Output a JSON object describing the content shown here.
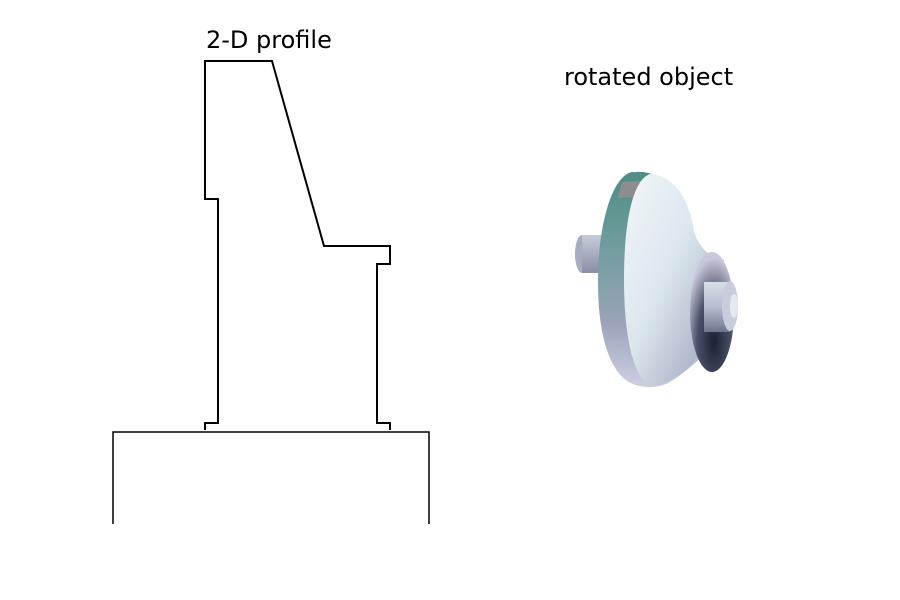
{
  "panels": {
    "profile": {
      "title": "2-D profile"
    },
    "object": {
      "title": "rotated object"
    }
  },
  "colors": {
    "background": "#ffffff",
    "line": "#000000",
    "teal": "#4f8d86",
    "light_surface": "#e9edf3",
    "dark_interior": "#222a3c",
    "lavender": "#c9c8da",
    "band": "#8d8d8d"
  }
}
